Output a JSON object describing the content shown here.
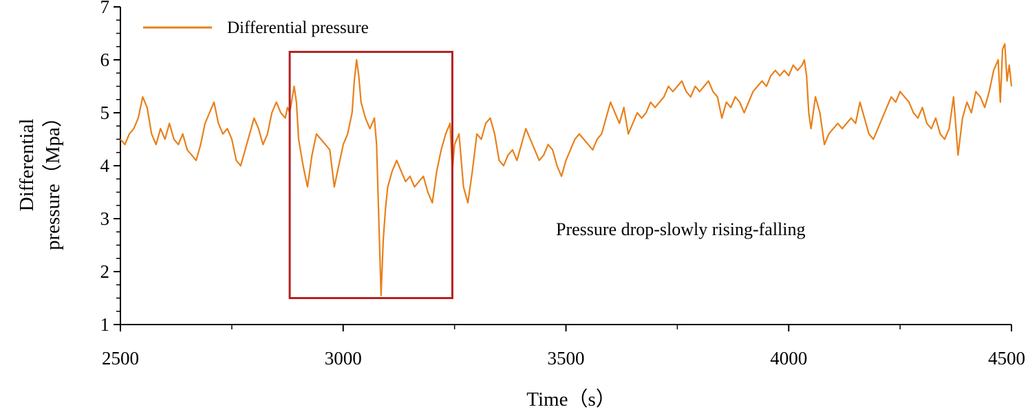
{
  "chart_data": {
    "type": "line",
    "title": "",
    "xlabel": "Time（s）",
    "ylabel_line1": "Differential",
    "ylabel_line2": "pressure（Mpa）",
    "xlim": [
      2500,
      4500
    ],
    "ylim": [
      1,
      7
    ],
    "xticks": [
      2500,
      3000,
      3500,
      4000,
      4500
    ],
    "yticks": [
      1,
      2,
      3,
      4,
      5,
      6,
      7
    ],
    "legend": {
      "label": "Differential pressure",
      "position": "top-left"
    },
    "annotation": "Pressure drop-slowly rising-falling",
    "highlight_box": {
      "x_range": [
        2880,
        3245
      ],
      "y_range": [
        1.5,
        6.15
      ],
      "color": "#b22222"
    },
    "series": [
      {
        "name": "Differential pressure",
        "color": "#e8801a",
        "points": [
          [
            2500,
            4.5
          ],
          [
            2510,
            4.4
          ],
          [
            2520,
            4.6
          ],
          [
            2530,
            4.7
          ],
          [
            2540,
            4.9
          ],
          [
            2550,
            5.3
          ],
          [
            2560,
            5.1
          ],
          [
            2570,
            4.6
          ],
          [
            2580,
            4.4
          ],
          [
            2590,
            4.7
          ],
          [
            2600,
            4.5
          ],
          [
            2610,
            4.8
          ],
          [
            2620,
            4.5
          ],
          [
            2630,
            4.4
          ],
          [
            2640,
            4.6
          ],
          [
            2650,
            4.3
          ],
          [
            2660,
            4.2
          ],
          [
            2670,
            4.1
          ],
          [
            2680,
            4.4
          ],
          [
            2690,
            4.8
          ],
          [
            2700,
            5.0
          ],
          [
            2710,
            5.2
          ],
          [
            2720,
            4.8
          ],
          [
            2730,
            4.6
          ],
          [
            2740,
            4.7
          ],
          [
            2750,
            4.5
          ],
          [
            2760,
            4.1
          ],
          [
            2770,
            4.0
          ],
          [
            2780,
            4.3
          ],
          [
            2790,
            4.6
          ],
          [
            2800,
            4.9
          ],
          [
            2810,
            4.7
          ],
          [
            2820,
            4.4
          ],
          [
            2830,
            4.6
          ],
          [
            2840,
            5.0
          ],
          [
            2850,
            5.2
          ],
          [
            2860,
            5.0
          ],
          [
            2870,
            4.9
          ],
          [
            2875,
            5.1
          ],
          [
            2880,
            5.0
          ],
          [
            2890,
            5.5
          ],
          [
            2895,
            5.2
          ],
          [
            2900,
            4.5
          ],
          [
            2910,
            4.0
          ],
          [
            2920,
            3.6
          ],
          [
            2930,
            4.2
          ],
          [
            2940,
            4.6
          ],
          [
            2950,
            4.5
          ],
          [
            2960,
            4.4
          ],
          [
            2970,
            4.3
          ],
          [
            2980,
            3.6
          ],
          [
            2990,
            4.0
          ],
          [
            3000,
            4.4
          ],
          [
            3010,
            4.6
          ],
          [
            3020,
            5.0
          ],
          [
            3025,
            5.6
          ],
          [
            3030,
            6.0
          ],
          [
            3035,
            5.7
          ],
          [
            3040,
            5.2
          ],
          [
            3050,
            4.9
          ],
          [
            3060,
            4.7
          ],
          [
            3070,
            4.9
          ],
          [
            3075,
            4.4
          ],
          [
            3080,
            3.0
          ],
          [
            3085,
            1.55
          ],
          [
            3090,
            2.6
          ],
          [
            3095,
            3.2
          ],
          [
            3100,
            3.6
          ],
          [
            3110,
            3.9
          ],
          [
            3120,
            4.1
          ],
          [
            3130,
            3.9
          ],
          [
            3140,
            3.7
          ],
          [
            3150,
            3.8
          ],
          [
            3160,
            3.6
          ],
          [
            3170,
            3.7
          ],
          [
            3180,
            3.8
          ],
          [
            3190,
            3.5
          ],
          [
            3200,
            3.3
          ],
          [
            3210,
            3.9
          ],
          [
            3220,
            4.3
          ],
          [
            3230,
            4.6
          ],
          [
            3240,
            4.8
          ],
          [
            3245,
            3.9
          ],
          [
            3250,
            4.4
          ],
          [
            3260,
            4.6
          ],
          [
            3270,
            3.6
          ],
          [
            3280,
            3.3
          ],
          [
            3290,
            3.9
          ],
          [
            3300,
            4.6
          ],
          [
            3310,
            4.5
          ],
          [
            3320,
            4.8
          ],
          [
            3330,
            4.9
          ],
          [
            3340,
            4.6
          ],
          [
            3350,
            4.1
          ],
          [
            3360,
            4.0
          ],
          [
            3370,
            4.2
          ],
          [
            3380,
            4.3
          ],
          [
            3390,
            4.1
          ],
          [
            3400,
            4.4
          ],
          [
            3410,
            4.7
          ],
          [
            3420,
            4.5
          ],
          [
            3430,
            4.3
          ],
          [
            3440,
            4.1
          ],
          [
            3450,
            4.2
          ],
          [
            3460,
            4.4
          ],
          [
            3470,
            4.3
          ],
          [
            3480,
            4.0
          ],
          [
            3490,
            3.8
          ],
          [
            3500,
            4.1
          ],
          [
            3510,
            4.3
          ],
          [
            3520,
            4.5
          ],
          [
            3530,
            4.6
          ],
          [
            3540,
            4.5
          ],
          [
            3550,
            4.4
          ],
          [
            3560,
            4.3
          ],
          [
            3570,
            4.5
          ],
          [
            3580,
            4.6
          ],
          [
            3590,
            4.9
          ],
          [
            3600,
            5.2
          ],
          [
            3610,
            5.0
          ],
          [
            3620,
            4.8
          ],
          [
            3630,
            5.1
          ],
          [
            3640,
            4.6
          ],
          [
            3650,
            4.8
          ],
          [
            3660,
            5.0
          ],
          [
            3670,
            4.9
          ],
          [
            3680,
            5.0
          ],
          [
            3690,
            5.2
          ],
          [
            3700,
            5.1
          ],
          [
            3710,
            5.2
          ],
          [
            3720,
            5.3
          ],
          [
            3730,
            5.5
          ],
          [
            3740,
            5.4
          ],
          [
            3750,
            5.5
          ],
          [
            3760,
            5.6
          ],
          [
            3770,
            5.4
          ],
          [
            3780,
            5.3
          ],
          [
            3790,
            5.5
          ],
          [
            3800,
            5.4
          ],
          [
            3810,
            5.5
          ],
          [
            3820,
            5.6
          ],
          [
            3830,
            5.4
          ],
          [
            3840,
            5.3
          ],
          [
            3850,
            4.9
          ],
          [
            3860,
            5.2
          ],
          [
            3870,
            5.1
          ],
          [
            3880,
            5.3
          ],
          [
            3890,
            5.2
          ],
          [
            3900,
            5.0
          ],
          [
            3910,
            5.2
          ],
          [
            3920,
            5.4
          ],
          [
            3930,
            5.5
          ],
          [
            3940,
            5.6
          ],
          [
            3950,
            5.5
          ],
          [
            3960,
            5.7
          ],
          [
            3970,
            5.8
          ],
          [
            3980,
            5.7
          ],
          [
            3990,
            5.8
          ],
          [
            4000,
            5.7
          ],
          [
            4010,
            5.9
          ],
          [
            4020,
            5.8
          ],
          [
            4030,
            5.9
          ],
          [
            4035,
            6.0
          ],
          [
            4040,
            5.7
          ],
          [
            4045,
            5.0
          ],
          [
            4050,
            4.7
          ],
          [
            4060,
            5.3
          ],
          [
            4070,
            5.0
          ],
          [
            4080,
            4.4
          ],
          [
            4090,
            4.6
          ],
          [
            4100,
            4.7
          ],
          [
            4110,
            4.8
          ],
          [
            4120,
            4.7
          ],
          [
            4130,
            4.8
          ],
          [
            4140,
            4.9
          ],
          [
            4150,
            4.8
          ],
          [
            4160,
            5.2
          ],
          [
            4170,
            4.9
          ],
          [
            4180,
            4.6
          ],
          [
            4190,
            4.5
          ],
          [
            4200,
            4.7
          ],
          [
            4210,
            4.9
          ],
          [
            4220,
            5.1
          ],
          [
            4230,
            5.3
          ],
          [
            4240,
            5.2
          ],
          [
            4250,
            5.4
          ],
          [
            4260,
            5.3
          ],
          [
            4270,
            5.2
          ],
          [
            4280,
            5.0
          ],
          [
            4290,
            4.9
          ],
          [
            4300,
            5.1
          ],
          [
            4310,
            4.8
          ],
          [
            4320,
            4.7
          ],
          [
            4330,
            4.9
          ],
          [
            4340,
            4.6
          ],
          [
            4350,
            4.5
          ],
          [
            4360,
            4.7
          ],
          [
            4370,
            5.3
          ],
          [
            4380,
            4.2
          ],
          [
            4390,
            4.9
          ],
          [
            4400,
            5.2
          ],
          [
            4410,
            5.0
          ],
          [
            4420,
            5.4
          ],
          [
            4430,
            5.3
          ],
          [
            4440,
            5.1
          ],
          [
            4450,
            5.4
          ],
          [
            4460,
            5.8
          ],
          [
            4470,
            6.0
          ],
          [
            4475,
            5.2
          ],
          [
            4480,
            6.2
          ],
          [
            4485,
            6.3
          ],
          [
            4490,
            5.6
          ],
          [
            4495,
            5.9
          ],
          [
            4500,
            5.5
          ]
        ]
      }
    ]
  }
}
